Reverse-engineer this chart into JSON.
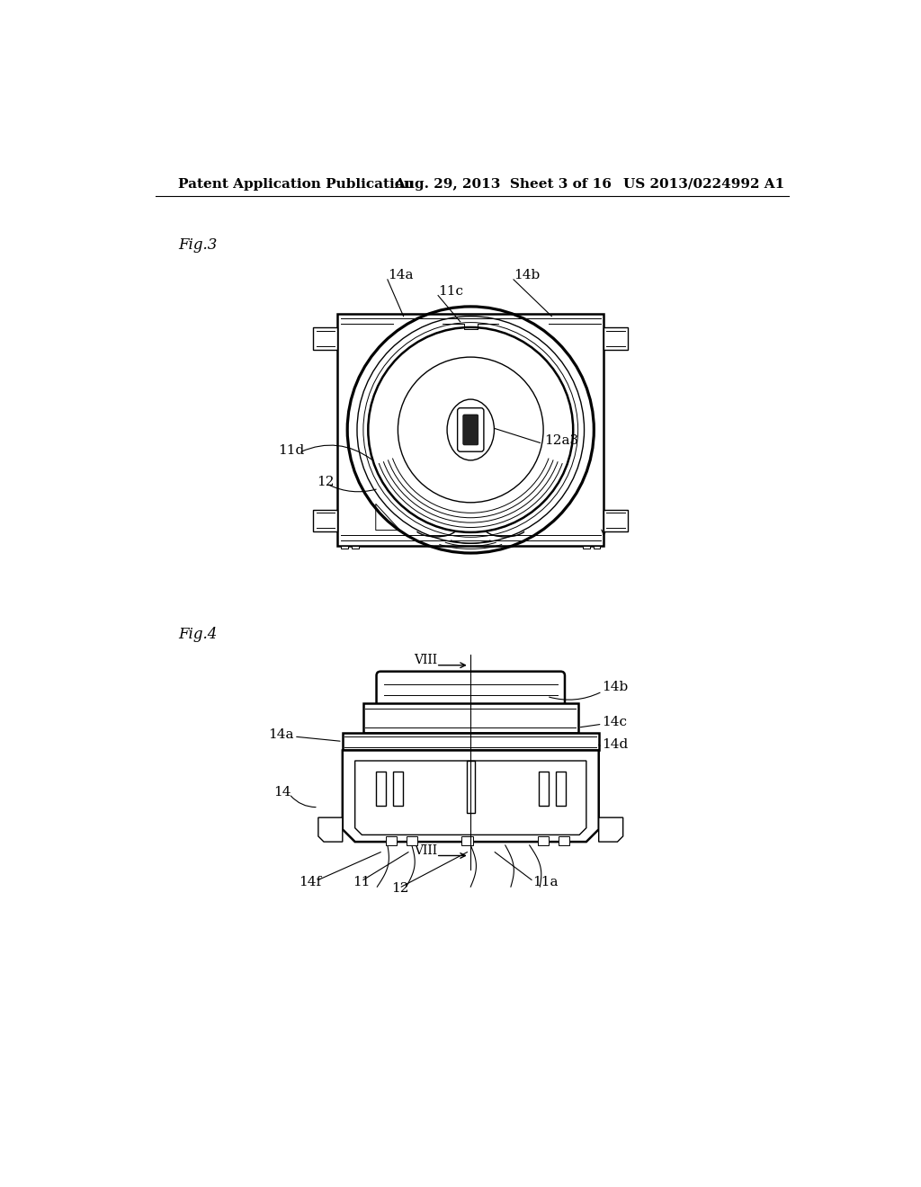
{
  "bg_color": "#ffffff",
  "header_left": "Patent Application Publication",
  "header_mid": "Aug. 29, 2013  Sheet 3 of 16",
  "header_right": "US 2013/0224992 A1",
  "fig3_label": "Fig.3",
  "fig4_label": "Fig.4"
}
